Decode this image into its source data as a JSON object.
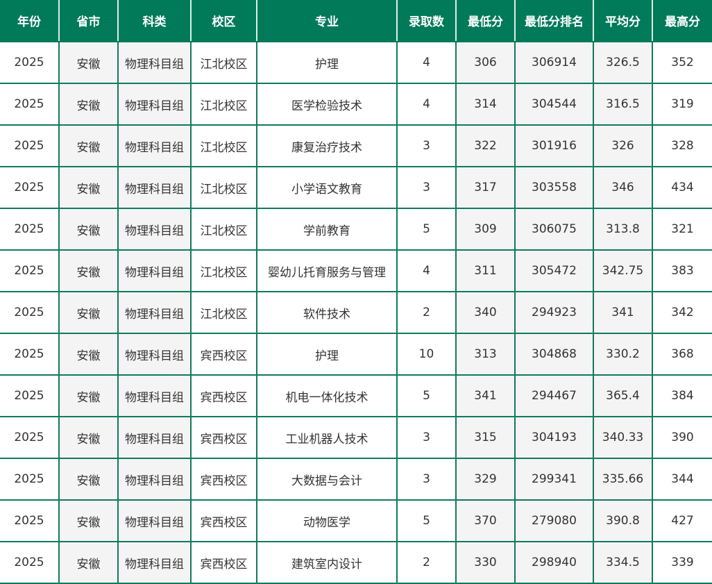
{
  "colors": {
    "header_bg": "#017a5a",
    "border": "#0e7a5e",
    "alt_col_bg": "#f4f4f4"
  },
  "headers": [
    "年份",
    "省市",
    "科类",
    "校区",
    "专业",
    "录取数",
    "最低分",
    "最低分排名",
    "平均分",
    "最高分"
  ],
  "rows": [
    [
      "2025",
      "安徽",
      "物理科目组",
      "江北校区",
      "护理",
      "4",
      "306",
      "306914",
      "326.5",
      "352"
    ],
    [
      "2025",
      "安徽",
      "物理科目组",
      "江北校区",
      "医学检验技术",
      "4",
      "314",
      "304544",
      "316.5",
      "319"
    ],
    [
      "2025",
      "安徽",
      "物理科目组",
      "江北校区",
      "康复治疗技术",
      "3",
      "322",
      "301916",
      "326",
      "328"
    ],
    [
      "2025",
      "安徽",
      "物理科目组",
      "江北校区",
      "小学语文教育",
      "3",
      "317",
      "303558",
      "346",
      "434"
    ],
    [
      "2025",
      "安徽",
      "物理科目组",
      "江北校区",
      "学前教育",
      "5",
      "309",
      "306075",
      "313.8",
      "321"
    ],
    [
      "2025",
      "安徽",
      "物理科目组",
      "江北校区",
      "婴幼儿托育服务与管理",
      "4",
      "311",
      "305472",
      "342.75",
      "383"
    ],
    [
      "2025",
      "安徽",
      "物理科目组",
      "江北校区",
      "软件技术",
      "2",
      "340",
      "294923",
      "341",
      "342"
    ],
    [
      "2025",
      "安徽",
      "物理科目组",
      "宾西校区",
      "护理",
      "10",
      "313",
      "304868",
      "330.2",
      "368"
    ],
    [
      "2025",
      "安徽",
      "物理科目组",
      "宾西校区",
      "机电一体化技术",
      "5",
      "341",
      "294467",
      "365.4",
      "384"
    ],
    [
      "2025",
      "安徽",
      "物理科目组",
      "宾西校区",
      "工业机器人技术",
      "3",
      "315",
      "304193",
      "340.33",
      "390"
    ],
    [
      "2025",
      "安徽",
      "物理科目组",
      "宾西校区",
      "大数据与会计",
      "3",
      "329",
      "299341",
      "335.66",
      "344"
    ],
    [
      "2025",
      "安徽",
      "物理科目组",
      "宾西校区",
      "动物医学",
      "5",
      "370",
      "279080",
      "390.8",
      "427"
    ],
    [
      "2025",
      "安徽",
      "物理科目组",
      "宾西校区",
      "建筑室内设计",
      "2",
      "330",
      "298940",
      "334.5",
      "339"
    ]
  ]
}
